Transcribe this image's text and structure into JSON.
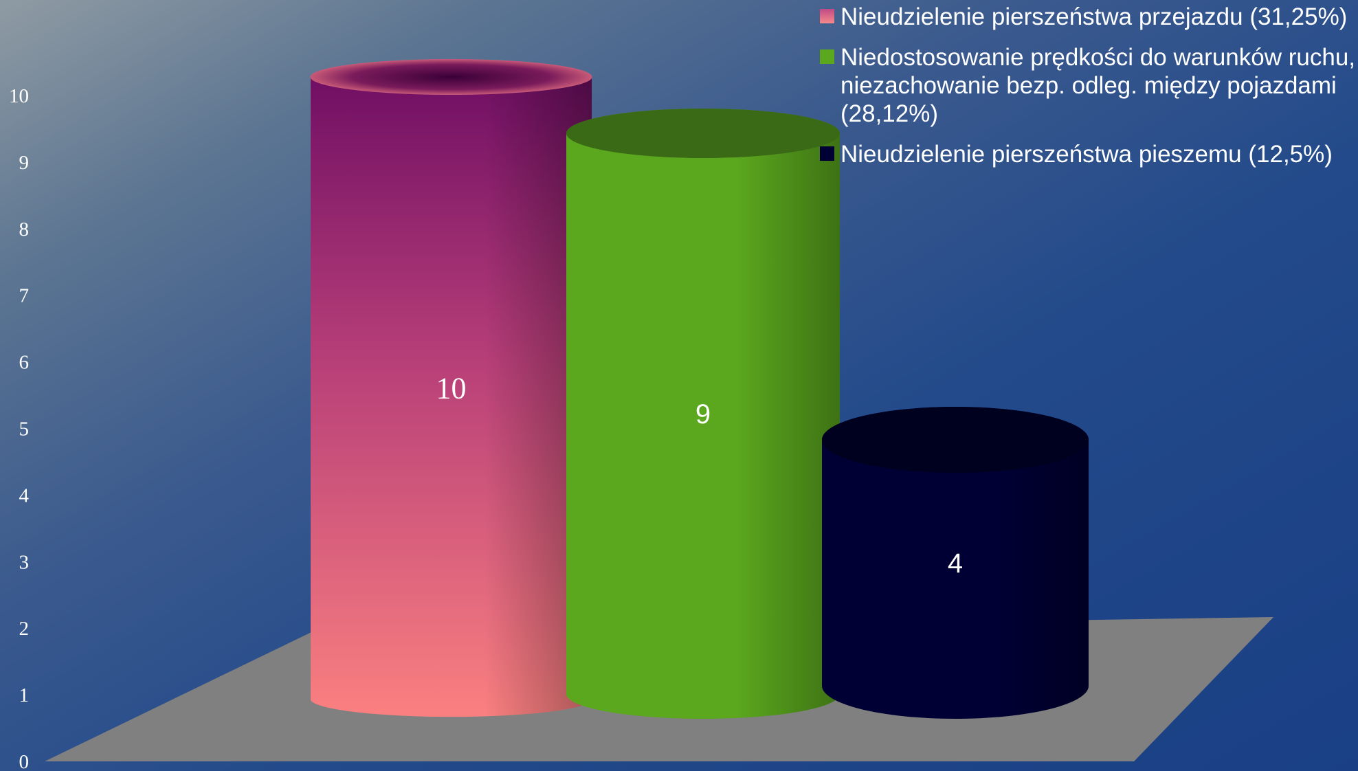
{
  "chart_data": {
    "type": "bar",
    "style": "3d-cylinder",
    "categories": [
      "Nieudzielenie pierszeństwa przejazdu (31,25%)",
      "Niedostosowanie prędkości do warunków ruchu, niezachowanie bezp. odleg. między pojazdami (28,12%)",
      "Nieudzielenie pierszeństwa pieszemu (12,5%)"
    ],
    "values": [
      10,
      9,
      4
    ],
    "data_labels": [
      "10",
      "9",
      "4"
    ],
    "colors": [
      "#d94a7e",
      "#5ba81e",
      "#000035"
    ],
    "ylim": [
      0,
      10
    ],
    "y_ticks": [
      "0",
      "1",
      "2",
      "3",
      "4",
      "5",
      "6",
      "7",
      "8",
      "9",
      "10"
    ],
    "legend_position": "top-right",
    "title": "",
    "xlabel": "",
    "ylabel": ""
  },
  "legend": {
    "items": [
      {
        "label": "Nieudzielenie pierszeństwa przejazdu (31,25%)",
        "color": "#d94a7e"
      },
      {
        "label": "Niedostosowanie prędkości do warunków ruchu, niezachowanie bezp. odleg. między pojazdami (28,12%)",
        "color": "#5ba81e"
      },
      {
        "label": "Nieudzielenie pierszeństwa pieszemu (12,5%)",
        "color": "#000035"
      }
    ]
  }
}
